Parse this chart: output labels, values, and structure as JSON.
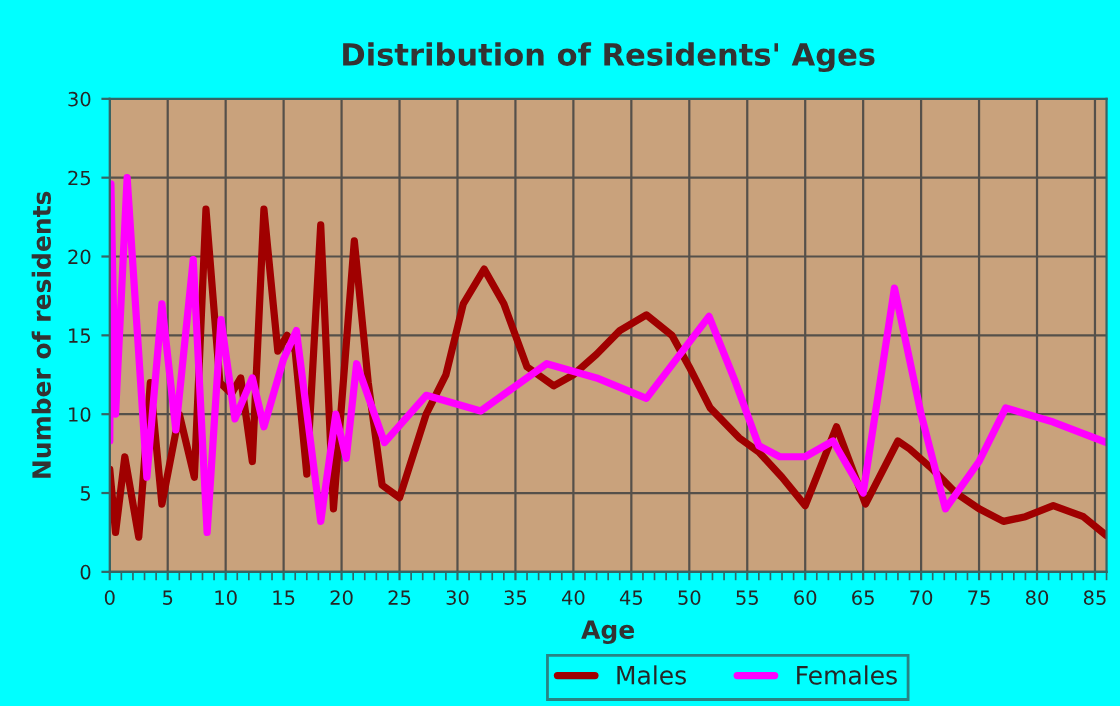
{
  "chart_data": {
    "type": "line",
    "title": "Distribution of Residents' Ages",
    "xlabel": "Age",
    "ylabel": "Number of residents",
    "xlim": [
      0,
      86
    ],
    "xticks": [
      0,
      5,
      10,
      15,
      20,
      25,
      30,
      35,
      40,
      45,
      50,
      55,
      60,
      65,
      70,
      75,
      80,
      85
    ],
    "ylim": [
      0,
      30
    ],
    "yticks": [
      0,
      5,
      10,
      15,
      20,
      25,
      30
    ],
    "grid": true,
    "legend": "bottom",
    "series": [
      {
        "name": "Males",
        "color": "#a00000",
        "x": [
          0,
          0.5,
          1.3,
          2.5,
          3.5,
          4.5,
          6,
          7.3,
          8.3,
          9.5,
          10.5,
          11.3,
          12.3,
          13.3,
          14.5,
          15.3,
          16,
          17,
          18.2,
          19.3,
          21.1,
          22.3,
          23.5,
          25,
          27.3,
          29,
          30.5,
          32.3,
          34,
          36,
          38.3,
          40,
          42,
          44,
          46.3,
          48.5,
          50,
          51.8,
          54.3,
          56,
          58,
          60,
          62.7,
          65.2,
          68,
          69,
          71,
          73,
          75,
          77.1,
          79,
          81.4,
          84,
          86
        ],
        "values": [
          6.5,
          2.5,
          7.3,
          2.2,
          12,
          4.3,
          10,
          6,
          23,
          12,
          11.3,
          12.3,
          7,
          23,
          14,
          15,
          14,
          6.2,
          22,
          4,
          21,
          12,
          5.5,
          4.7,
          10,
          12.5,
          17,
          19.2,
          17,
          13,
          11.8,
          12.5,
          13.8,
          15.3,
          16.3,
          15,
          13,
          10.4,
          8.5,
          7.6,
          6,
          4.2,
          9.2,
          4.3,
          8.3,
          7.8,
          6.5,
          5,
          4,
          3.2,
          3.5,
          4.2,
          3.5,
          2.3
        ]
      },
      {
        "name": "Females",
        "color": "#ff00ff",
        "x": [
          0,
          0.1,
          0.5,
          1.5,
          3.2,
          4.5,
          5.7,
          7.2,
          8.4,
          9.6,
          10.8,
          12.3,
          13.3,
          15,
          16.1,
          18.2,
          19.5,
          20.4,
          21.3,
          23.7,
          27.3,
          32,
          37.7,
          42,
          46.3,
          51.7,
          54,
          56,
          57.8,
          60,
          62.4,
          65,
          67.7,
          70,
          72.1,
          75,
          77.3,
          81.4,
          86
        ],
        "values": [
          8.3,
          24.6,
          10,
          25,
          6,
          17,
          9,
          19.8,
          2.5,
          16,
          9.7,
          12.3,
          9.2,
          13.5,
          15.3,
          3.2,
          10,
          7.2,
          13.2,
          8.2,
          11.2,
          10.2,
          13.2,
          12.3,
          11,
          16.2,
          12,
          8,
          7.3,
          7.3,
          8.3,
          5,
          18,
          10,
          4,
          7,
          10.4,
          9.5,
          8.2
        ]
      }
    ]
  }
}
